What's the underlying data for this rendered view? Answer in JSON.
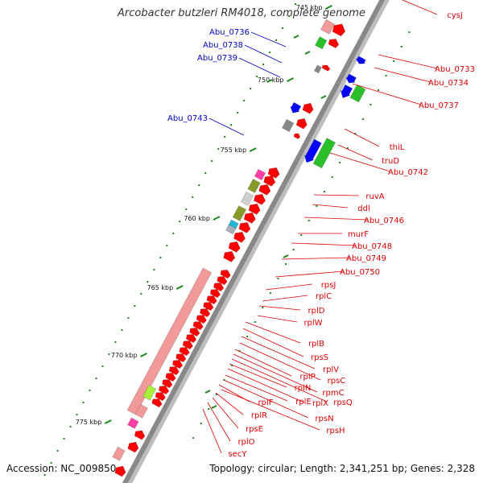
{
  "title": "Arcobacter butzleri RM4018, complete genome",
  "footer": {
    "accession": "Accession: NC_009850",
    "summary": "Topology: circular; Length: 2,341,251 bp; Genes: 2,328"
  },
  "colors": {
    "forward_label": "#0000cc",
    "reverse_label": "#dd0000",
    "cds_forward": "#0000ff",
    "cds_reverse": "#ff0000",
    "backbone": "#888888",
    "tick": "#1a8a1a"
  },
  "kbp_ticks": [
    "745 kbp",
    "750 kbp",
    "755 kbp",
    "760 kbp",
    "765 kbp",
    "770 kbp",
    "775 kbp"
  ],
  "forward_labels": [
    "Abu_0736",
    "Abu_0738",
    "Abu_0739",
    "Abu_0743"
  ],
  "reverse_labels": [
    "cysJ",
    "Abu_0733",
    "Abu_0734",
    "Abu_0737",
    "thiL",
    "truD",
    "Abu_0742",
    "ruvA",
    "ddl",
    "Abu_0746",
    "murF",
    "Abu_0748",
    "Abu_0749",
    "Abu_0750",
    "rpsJ",
    "rplC",
    "rplD",
    "rplW",
    "rplB",
    "rpsS",
    "rplV",
    "rpsC",
    "rplP",
    "rpmC",
    "rpsQ",
    "rplN",
    "rplX",
    "rplE",
    "rpsN",
    "rplF",
    "rpsH",
    "rplR",
    "rpsE",
    "rplO",
    "secY"
  ]
}
